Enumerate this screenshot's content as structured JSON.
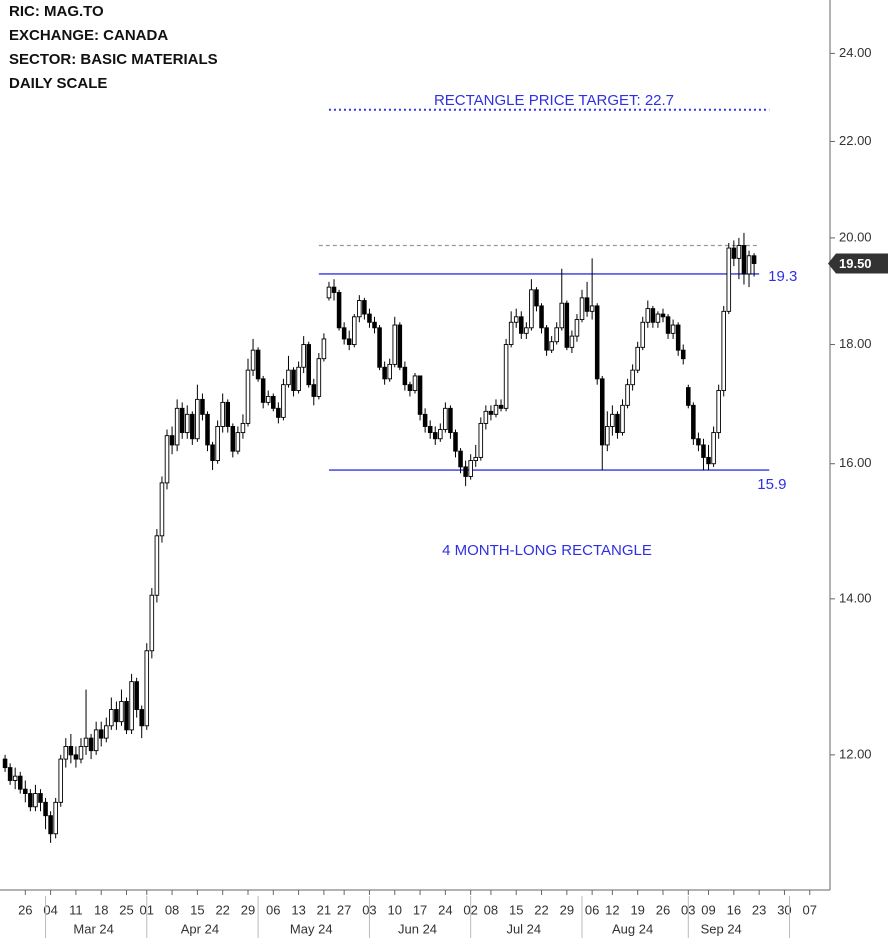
{
  "header": [
    "RIC:  MAG.TO",
    "EXCHANGE:  CANADA",
    "SECTOR:  BASIC MATERIALS",
    "DAILY SCALE"
  ],
  "chart_data": {
    "type": "candlestick",
    "log_scale": true,
    "up_color": "#ffffff",
    "down_color": "#000000",
    "x": [
      "2024-02-20",
      "2024-02-21",
      "2024-02-22",
      "2024-02-23",
      "2024-02-26",
      "2024-02-27",
      "2024-02-28",
      "2024-02-29",
      "2024-03-01",
      "2024-03-04",
      "2024-03-05",
      "2024-03-06",
      "2024-03-07",
      "2024-03-08",
      "2024-03-11",
      "2024-03-12",
      "2024-03-13",
      "2024-03-14",
      "2024-03-15",
      "2024-03-18",
      "2024-03-19",
      "2024-03-20",
      "2024-03-21",
      "2024-03-22",
      "2024-03-25",
      "2024-03-26",
      "2024-03-27",
      "2024-03-28",
      "2024-04-01",
      "2024-04-02",
      "2024-04-03",
      "2024-04-04",
      "2024-04-05",
      "2024-04-08",
      "2024-04-09",
      "2024-04-10",
      "2024-04-11",
      "2024-04-12",
      "2024-04-15",
      "2024-04-16",
      "2024-04-17",
      "2024-04-18",
      "2024-04-19",
      "2024-04-22",
      "2024-04-23",
      "2024-04-24",
      "2024-04-25",
      "2024-04-26",
      "2024-04-29",
      "2024-04-30",
      "2024-05-01",
      "2024-05-02",
      "2024-05-03",
      "2024-05-06",
      "2024-05-07",
      "2024-05-08",
      "2024-05-09",
      "2024-05-10",
      "2024-05-13",
      "2024-05-14",
      "2024-05-15",
      "2024-05-16",
      "2024-05-17",
      "2024-05-21",
      "2024-05-22",
      "2024-05-23",
      "2024-05-24",
      "2024-05-27",
      "2024-05-28",
      "2024-05-29",
      "2024-05-30",
      "2024-05-31",
      "2024-06-03",
      "2024-06-04",
      "2024-06-05",
      "2024-06-06",
      "2024-06-07",
      "2024-06-10",
      "2024-06-11",
      "2024-06-12",
      "2024-06-13",
      "2024-06-14",
      "2024-06-17",
      "2024-06-18",
      "2024-06-19",
      "2024-06-20",
      "2024-06-21",
      "2024-06-24",
      "2024-06-25",
      "2024-06-26",
      "2024-06-27",
      "2024-06-28",
      "2024-07-02",
      "2024-07-03",
      "2024-07-04",
      "2024-07-05",
      "2024-07-08",
      "2024-07-09",
      "2024-07-10",
      "2024-07-11",
      "2024-07-12",
      "2024-07-15",
      "2024-07-16",
      "2024-07-17",
      "2024-07-18",
      "2024-07-19",
      "2024-07-22",
      "2024-07-23",
      "2024-07-24",
      "2024-07-25",
      "2024-07-26",
      "2024-07-29",
      "2024-07-30",
      "2024-07-31",
      "2024-08-01",
      "2024-08-02",
      "2024-08-06",
      "2024-08-07",
      "2024-08-08",
      "2024-08-09",
      "2024-08-12",
      "2024-08-13",
      "2024-08-14",
      "2024-08-15",
      "2024-08-16",
      "2024-08-19",
      "2024-08-20",
      "2024-08-21",
      "2024-08-22",
      "2024-08-23",
      "2024-08-26",
      "2024-08-27",
      "2024-08-28",
      "2024-08-29",
      "2024-08-30",
      "2024-09-03",
      "2024-09-04",
      "2024-09-05",
      "2024-09-06",
      "2024-09-09",
      "2024-09-10",
      "2024-09-11",
      "2024-09-12",
      "2024-09-13",
      "2024-09-16",
      "2024-09-17",
      "2024-09-18",
      "2024-09-19",
      "2024-09-20"
    ],
    "open": [
      11.95,
      11.85,
      11.7,
      11.75,
      11.6,
      11.55,
      11.4,
      11.55,
      11.45,
      11.3,
      11.1,
      11.45,
      11.95,
      12.1,
      12.0,
      11.95,
      12.1,
      12.2,
      12.05,
      12.3,
      12.2,
      12.35,
      12.55,
      12.4,
      12.65,
      12.3,
      12.9,
      12.55,
      12.35,
      13.3,
      14.05,
      14.9,
      15.7,
      16.45,
      16.3,
      16.9,
      16.5,
      16.8,
      16.4,
      17.05,
      16.8,
      16.3,
      16.05,
      16.6,
      17.0,
      16.6,
      16.2,
      16.5,
      16.65,
      17.55,
      17.9,
      17.4,
      17.0,
      17.1,
      16.9,
      16.75,
      17.3,
      17.55,
      17.2,
      17.6,
      18.0,
      17.3,
      17.1,
      17.75,
      18.85,
      19.05,
      18.95,
      18.3,
      18.1,
      18.0,
      18.5,
      18.8,
      18.55,
      18.4,
      18.3,
      17.6,
      17.4,
      17.65,
      18.35,
      17.6,
      17.3,
      17.2,
      17.45,
      16.8,
      16.6,
      16.5,
      16.4,
      16.55,
      16.9,
      16.5,
      16.2,
      15.95,
      15.8,
      16.05,
      16.1,
      16.65,
      16.85,
      16.8,
      16.95,
      16.9,
      18.0,
      18.4,
      18.5,
      18.2,
      18.3,
      19.0,
      18.7,
      18.3,
      17.9,
      18.05,
      18.3,
      18.75,
      17.95,
      18.15,
      18.45,
      18.85,
      18.6,
      18.7,
      17.4,
      16.3,
      16.6,
      16.8,
      16.5,
      16.95,
      17.3,
      17.55,
      17.95,
      18.4,
      18.65,
      18.4,
      18.55,
      18.5,
      18.2,
      18.35,
      17.9,
      17.25,
      16.95,
      16.4,
      16.3,
      16.1,
      16.0,
      16.5,
      17.2,
      18.6,
      19.8,
      19.6,
      19.85,
      19.3,
      19.65
    ],
    "high": [
      12.0,
      11.9,
      11.85,
      11.8,
      11.7,
      11.6,
      11.65,
      11.6,
      11.5,
      11.35,
      11.5,
      12.0,
      12.2,
      12.25,
      12.1,
      12.2,
      12.8,
      12.25,
      12.4,
      12.4,
      12.45,
      12.7,
      12.65,
      12.8,
      12.7,
      13.0,
      12.95,
      12.6,
      13.4,
      14.15,
      15.0,
      15.8,
      16.55,
      16.6,
      17.05,
      17.0,
      16.95,
      16.85,
      17.3,
      17.15,
      16.85,
      16.35,
      16.7,
      17.15,
      17.05,
      16.65,
      16.6,
      16.8,
      17.75,
      18.1,
      17.95,
      17.45,
      17.2,
      17.15,
      17.0,
      17.4,
      17.8,
      17.6,
      17.7,
      18.15,
      18.05,
      17.4,
      17.85,
      18.2,
      19.15,
      19.2,
      19.0,
      18.4,
      18.25,
      18.55,
      18.9,
      18.85,
      18.65,
      18.5,
      18.35,
      17.7,
      17.75,
      18.5,
      18.4,
      17.7,
      17.35,
      17.5,
      17.45,
      16.9,
      16.7,
      16.6,
      16.65,
      17.0,
      16.95,
      16.55,
      16.25,
      16.05,
      16.15,
      16.3,
      16.75,
      16.95,
      16.95,
      17.05,
      17.05,
      18.1,
      18.6,
      18.65,
      18.6,
      18.4,
      19.2,
      19.05,
      18.75,
      18.35,
      18.15,
      18.4,
      19.4,
      18.8,
      18.25,
      18.55,
      19.0,
      19.15,
      19.6,
      18.75,
      17.45,
      16.85,
      16.95,
      16.85,
      17.05,
      17.4,
      17.65,
      18.05,
      18.5,
      18.8,
      18.7,
      18.6,
      18.65,
      18.55,
      18.45,
      18.4,
      18.0,
      17.3,
      17.0,
      16.5,
      16.4,
      16.3,
      16.6,
      17.3,
      18.7,
      19.9,
      19.95,
      20.0,
      20.1,
      19.75,
      19.7
    ],
    "low": [
      11.8,
      11.65,
      11.6,
      11.55,
      11.45,
      11.35,
      11.35,
      11.35,
      11.15,
      11.0,
      11.05,
      11.4,
      11.85,
      11.9,
      11.85,
      11.9,
      12.0,
      11.95,
      12.0,
      12.1,
      12.15,
      12.3,
      12.3,
      12.35,
      12.25,
      12.25,
      12.45,
      12.2,
      12.3,
      13.2,
      13.95,
      14.8,
      15.6,
      16.15,
      16.2,
      16.4,
      16.4,
      16.3,
      16.35,
      16.7,
      16.2,
      15.9,
      16.0,
      16.5,
      16.5,
      16.1,
      16.15,
      16.4,
      16.6,
      17.45,
      17.35,
      16.9,
      16.95,
      16.85,
      16.65,
      16.7,
      17.25,
      17.1,
      17.15,
      17.5,
      17.25,
      16.95,
      17.05,
      17.7,
      18.8,
      18.8,
      18.25,
      18.0,
      17.9,
      17.95,
      18.4,
      18.45,
      18.3,
      18.2,
      17.55,
      17.3,
      17.35,
      17.6,
      17.55,
      17.2,
      17.1,
      17.15,
      16.7,
      16.5,
      16.4,
      16.3,
      16.35,
      16.5,
      16.4,
      16.1,
      15.85,
      15.65,
      15.75,
      15.95,
      16.05,
      16.55,
      16.7,
      16.75,
      16.85,
      16.85,
      17.95,
      18.3,
      18.1,
      18.1,
      18.25,
      18.6,
      18.2,
      17.8,
      17.85,
      18.0,
      18.25,
      17.9,
      17.85,
      18.05,
      18.4,
      18.5,
      18.45,
      17.3,
      15.9,
      16.2,
      16.45,
      16.4,
      16.45,
      16.9,
      17.2,
      17.5,
      17.9,
      18.3,
      18.3,
      18.3,
      18.4,
      18.1,
      18.1,
      17.8,
      17.65,
      16.9,
      16.3,
      16.2,
      15.9,
      15.9,
      15.95,
      16.4,
      17.1,
      18.55,
      19.45,
      19.2,
      19.1,
      19.05,
      19.25
    ],
    "close": [
      11.85,
      11.7,
      11.75,
      11.6,
      11.55,
      11.4,
      11.55,
      11.45,
      11.3,
      11.1,
      11.45,
      11.95,
      12.1,
      12.0,
      11.95,
      12.1,
      12.2,
      12.05,
      12.3,
      12.2,
      12.35,
      12.55,
      12.4,
      12.65,
      12.3,
      12.9,
      12.55,
      12.35,
      13.3,
      14.05,
      14.9,
      15.7,
      16.45,
      16.3,
      16.9,
      16.5,
      16.8,
      16.4,
      17.05,
      16.8,
      16.3,
      16.05,
      16.6,
      17.0,
      16.6,
      16.2,
      16.5,
      16.65,
      17.55,
      17.9,
      17.4,
      17.0,
      17.1,
      16.9,
      16.75,
      17.3,
      17.55,
      17.2,
      17.6,
      18.0,
      17.3,
      17.1,
      17.75,
      18.1,
      19.05,
      18.95,
      18.3,
      18.1,
      18.0,
      18.5,
      18.8,
      18.55,
      18.4,
      18.3,
      17.6,
      17.4,
      17.65,
      18.35,
      17.6,
      17.3,
      17.2,
      17.45,
      16.8,
      16.6,
      16.5,
      16.4,
      16.55,
      16.9,
      16.5,
      16.2,
      15.95,
      15.8,
      16.05,
      16.1,
      16.65,
      16.85,
      16.8,
      16.95,
      16.9,
      18.0,
      18.4,
      18.5,
      18.2,
      18.3,
      19.0,
      18.7,
      18.3,
      17.9,
      18.05,
      18.3,
      18.75,
      17.95,
      18.15,
      18.45,
      18.85,
      18.6,
      18.7,
      17.4,
      16.3,
      16.6,
      16.8,
      16.5,
      16.95,
      17.3,
      17.55,
      17.95,
      18.4,
      18.65,
      18.4,
      18.55,
      18.5,
      18.2,
      18.35,
      17.9,
      17.75,
      16.95,
      16.4,
      16.3,
      16.1,
      16.0,
      16.5,
      17.2,
      18.6,
      19.8,
      19.6,
      19.85,
      19.3,
      19.65,
      19.5
    ],
    "xlim": [
      "2024-02-19",
      "2024-10-11"
    ],
    "xticks": [
      {
        "value": "2024-02-26",
        "label": "26"
      },
      {
        "value": "2024-03-04",
        "label": "04"
      },
      {
        "value": "2024-03-11",
        "label": "11"
      },
      {
        "value": "2024-03-18",
        "label": "18"
      },
      {
        "value": "2024-03-25",
        "label": "25"
      },
      {
        "value": "2024-04-01",
        "label": "01"
      },
      {
        "value": "2024-04-08",
        "label": "08"
      },
      {
        "value": "2024-04-15",
        "label": "15"
      },
      {
        "value": "2024-04-22",
        "label": "22"
      },
      {
        "value": "2024-04-29",
        "label": "29"
      },
      {
        "value": "2024-05-06",
        "label": "06"
      },
      {
        "value": "2024-05-13",
        "label": "13"
      },
      {
        "value": "2024-05-21",
        "label": "21"
      },
      {
        "value": "2024-05-27",
        "label": "27"
      },
      {
        "value": "2024-06-03",
        "label": "03"
      },
      {
        "value": "2024-06-10",
        "label": "10"
      },
      {
        "value": "2024-06-17",
        "label": "17"
      },
      {
        "value": "2024-06-24",
        "label": "24"
      },
      {
        "value": "2024-07-02",
        "label": "02"
      },
      {
        "value": "2024-07-08",
        "label": "08"
      },
      {
        "value": "2024-07-15",
        "label": "15"
      },
      {
        "value": "2024-07-22",
        "label": "22"
      },
      {
        "value": "2024-07-29",
        "label": "29"
      },
      {
        "value": "2024-08-06",
        "label": "06"
      },
      {
        "value": "2024-08-12",
        "label": "12"
      },
      {
        "value": "2024-08-19",
        "label": "19"
      },
      {
        "value": "2024-08-26",
        "label": "26"
      },
      {
        "value": "2024-09-03",
        "label": "03"
      },
      {
        "value": "2024-09-09",
        "label": "09"
      },
      {
        "value": "2024-09-16",
        "label": "16"
      },
      {
        "value": "2024-09-23",
        "label": "23"
      },
      {
        "value": "2024-09-30",
        "label": "30"
      },
      {
        "value": "2024-10-07",
        "label": "07"
      }
    ],
    "months": [
      {
        "value": "2024-03",
        "label": "Mar 24"
      },
      {
        "value": "2024-04",
        "label": "Apr 24"
      },
      {
        "value": "2024-05",
        "label": "May 24"
      },
      {
        "value": "2024-06",
        "label": "Jun 24"
      },
      {
        "value": "2024-07",
        "label": "Jul 24"
      },
      {
        "value": "2024-08",
        "label": "Aug 24"
      },
      {
        "value": "2024-09",
        "label": "Sep 24"
      }
    ],
    "ylim": [
      10.5,
      25.3
    ],
    "yticks": [
      {
        "value": 12,
        "label": "12.00"
      },
      {
        "value": 14,
        "label": "14.00"
      },
      {
        "value": 16,
        "label": "16.00"
      },
      {
        "value": 18,
        "label": "18.00"
      },
      {
        "value": 20,
        "label": "20.00"
      },
      {
        "value": 22,
        "label": "22.00"
      },
      {
        "value": 24,
        "label": "24.00"
      }
    ],
    "last_price": {
      "value": 19.5,
      "label": "19.50"
    },
    "levels": [
      {
        "value": 19.3,
        "label": "19.3",
        "from": "2024-05-17",
        "to": "2024-09-23",
        "style": "solid",
        "color": "#3535e6",
        "label_position": "right"
      },
      {
        "value": 15.9,
        "label": "15.9",
        "from": "2024-05-22",
        "to": "2024-09-25",
        "style": "solid",
        "color": "#3535e6",
        "label_position": "below"
      },
      {
        "value": 22.7,
        "from": "2024-05-22",
        "to": "2024-09-25",
        "style": "dotted",
        "color": "#3535e6"
      },
      {
        "value": 19.85,
        "from": "2024-05-17",
        "to": "2024-09-23",
        "style": "dashed",
        "color": "#999999"
      }
    ],
    "target_text": "RECTANGLE PRICE TARGET: 22.7",
    "pattern_text": "4 MONTH-LONG RECTANGLE"
  }
}
